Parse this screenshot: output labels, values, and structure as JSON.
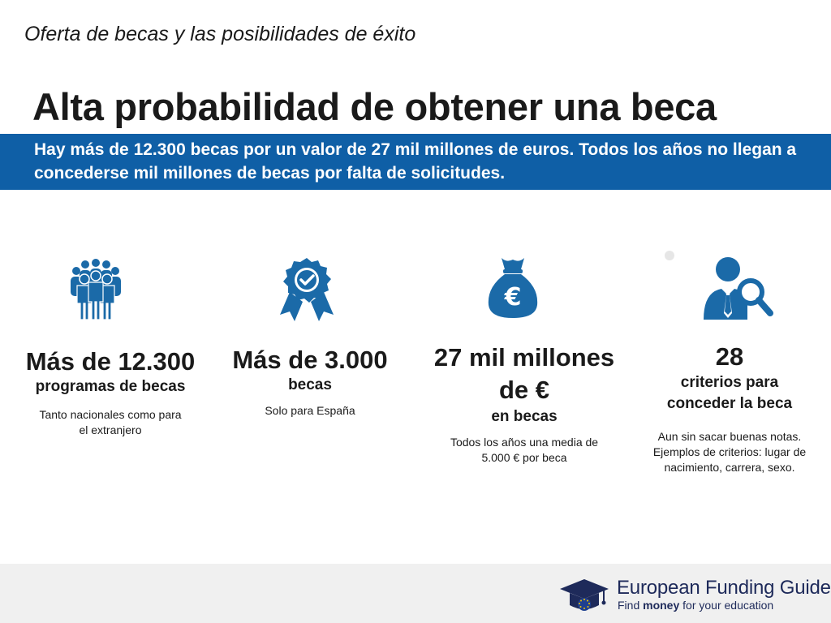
{
  "header": {
    "subtitle": "Oferta de becas y las posibilidades de éxito",
    "title": "Alta probabilidad de obtener una beca"
  },
  "banner": {
    "text": "Hay más de 12.300 becas por un valor de 27 mil millones de euros.  Todos los años no llegan a concederse mil millones de becas por falta de solicitudes."
  },
  "stats": [
    {
      "icon": "people-group-icon",
      "big": "Más de 12.300",
      "unit": "programas de becas",
      "note": "Tanto nacionales como para el extranjero"
    },
    {
      "icon": "award-badge-icon",
      "big": "Más de 3.000",
      "unit": "becas",
      "note": "Solo para España"
    },
    {
      "icon": "money-bag-euro-icon",
      "big": "27 mil millones de €",
      "unit": "en becas",
      "note": "Todos los años una media de 5.000 € por beca"
    },
    {
      "icon": "person-search-icon",
      "big": "28",
      "unit": "criterios para conceder la beca",
      "note": "Aun sin sacar buenas notas. Ejemplos de criterios: lugar de nacimiento, carrera, sexo."
    }
  ],
  "footer": {
    "logo_name": "European Funding Guide",
    "tag_prefix": "Find ",
    "tag_bold": "money",
    "tag_suffix": " for your education"
  },
  "colors": {
    "banner": "#0f5fa6",
    "icon": "#1b6aa8",
    "logo": "#1e2a5a"
  }
}
